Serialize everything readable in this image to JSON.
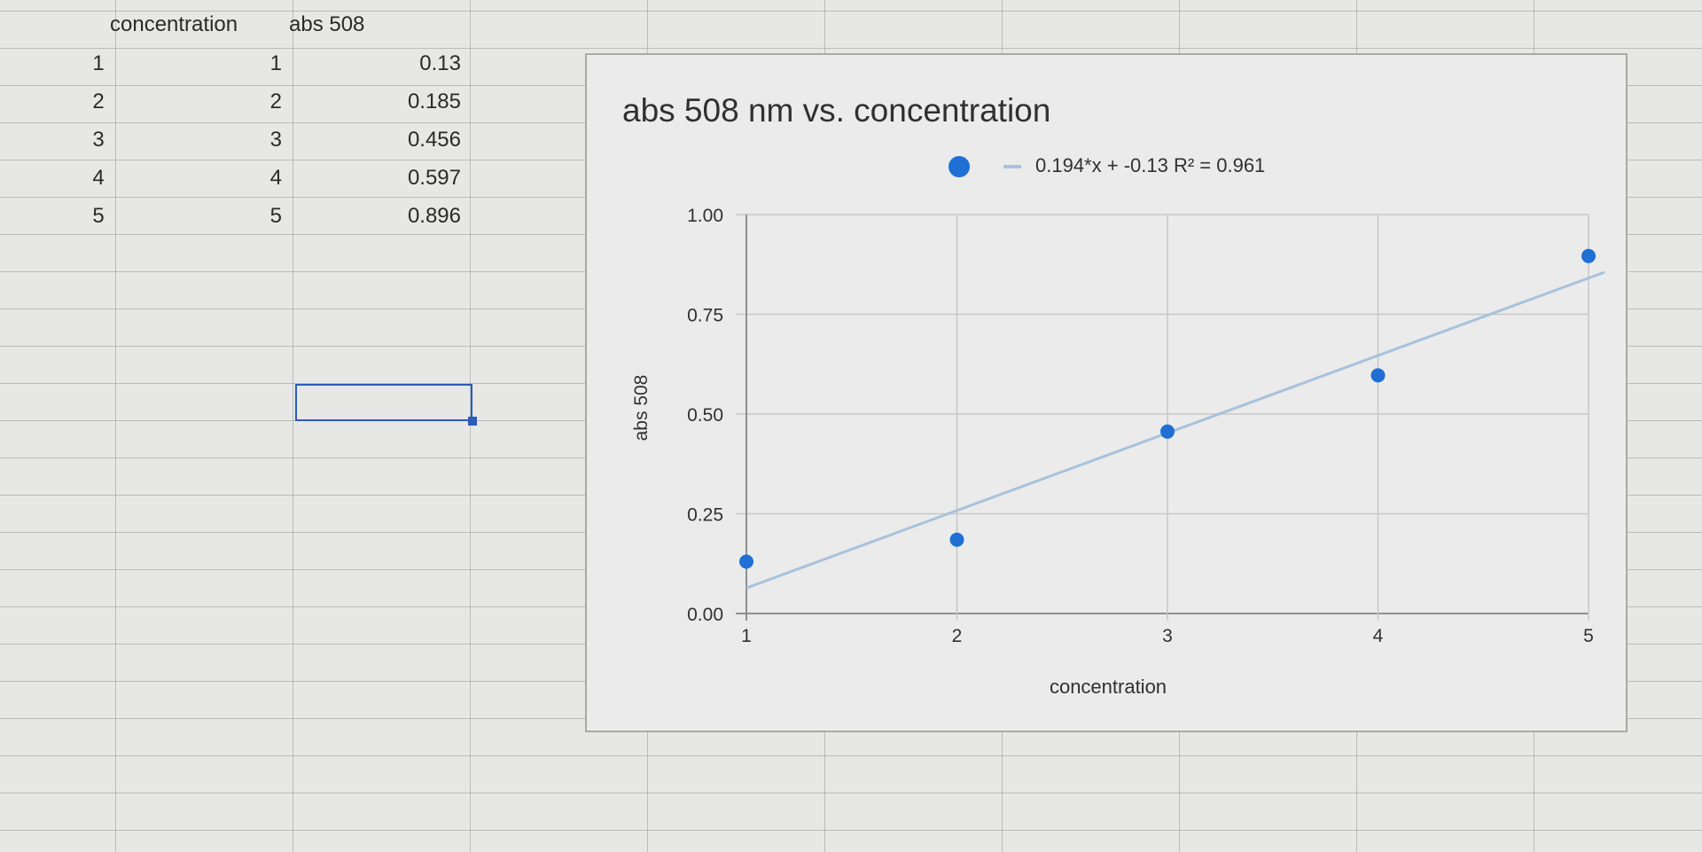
{
  "sheet": {
    "headers": [
      "concentration",
      "abs 508"
    ],
    "rows": [
      {
        "num": "1",
        "conc": "1",
        "abs": "0.13"
      },
      {
        "num": "2",
        "conc": "2",
        "abs": "0.185"
      },
      {
        "num": "3",
        "conc": "3",
        "abs": "0.456"
      },
      {
        "num": "4",
        "conc": "4",
        "abs": "0.597"
      },
      {
        "num": "5",
        "conc": "5",
        "abs": "0.896"
      }
    ]
  },
  "chart_data": {
    "type": "scatter",
    "title": "abs 508 nm vs. concentration",
    "xlabel": "concentration",
    "ylabel": "abs 508",
    "legend": "0.194*x + -0.13 R² = 0.961",
    "legend_position": "top",
    "grid": true,
    "xlim": [
      1,
      5
    ],
    "ylim": [
      0,
      1
    ],
    "x_ticks": [
      "1",
      "2",
      "3",
      "4",
      "5"
    ],
    "y_ticks": [
      "0.00",
      "0.25",
      "0.50",
      "0.75",
      "1.00"
    ],
    "points": [
      {
        "x": 1,
        "y": 0.13
      },
      {
        "x": 2,
        "y": 0.185
      },
      {
        "x": 3,
        "y": 0.456
      },
      {
        "x": 4,
        "y": 0.597
      },
      {
        "x": 5,
        "y": 0.896
      }
    ],
    "trendline": {
      "slope": 0.194,
      "intercept": -0.13
    },
    "point_color": "#1f6fd4",
    "trendline_color": "#a8c2dc"
  }
}
